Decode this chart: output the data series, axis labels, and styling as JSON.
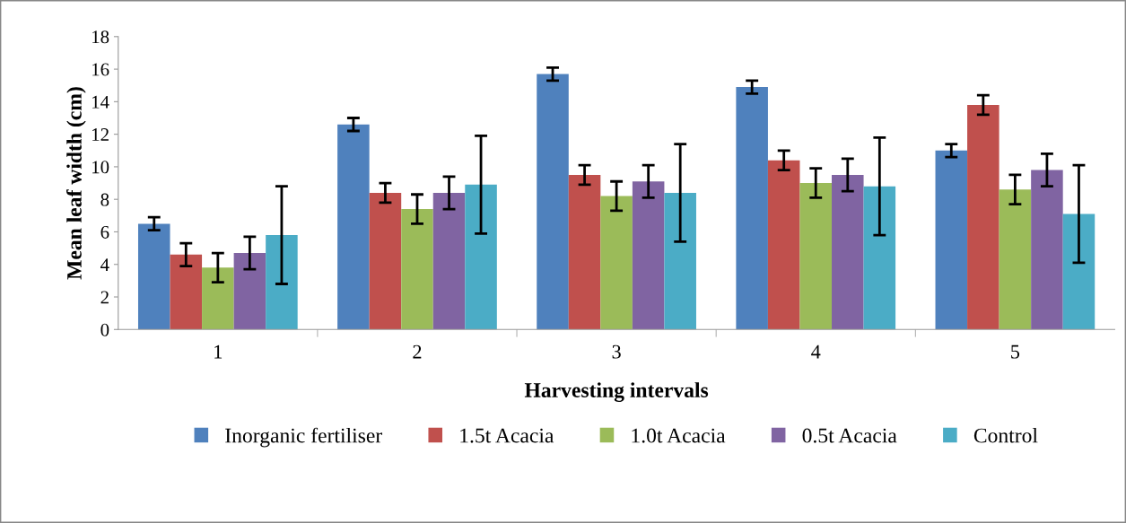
{
  "chart_data": {
    "type": "bar",
    "xlabel": "Harvesting intervals",
    "ylabel": "Mean leaf width (cm)",
    "categories": [
      "1",
      "2",
      "3",
      "4",
      "5"
    ],
    "series": [
      {
        "name": "Inorganic fertiliser",
        "color": "#4f81bd",
        "values": [
          6.5,
          12.6,
          15.7,
          14.9,
          11.0
        ],
        "errors": [
          0.4,
          0.4,
          0.4,
          0.4,
          0.4
        ]
      },
      {
        "name": "1.5t Acacia",
        "color": "#c0504d",
        "values": [
          4.6,
          8.4,
          9.5,
          10.4,
          13.8
        ],
        "errors": [
          0.7,
          0.6,
          0.6,
          0.6,
          0.6
        ]
      },
      {
        "name": "1.0t Acacia",
        "color": "#9bbb59",
        "values": [
          3.8,
          7.4,
          8.2,
          9.0,
          8.6
        ],
        "errors": [
          0.9,
          0.9,
          0.9,
          0.9,
          0.9
        ]
      },
      {
        "name": "0.5t Acacia",
        "color": "#8064a2",
        "values": [
          4.7,
          8.4,
          9.1,
          9.5,
          9.8
        ],
        "errors": [
          1.0,
          1.0,
          1.0,
          1.0,
          1.0
        ]
      },
      {
        "name": "Control",
        "color": "#4bacc6",
        "values": [
          5.8,
          8.9,
          8.4,
          8.8,
          7.1
        ],
        "errors": [
          3.0,
          3.0,
          3.0,
          3.0,
          3.0
        ]
      }
    ],
    "ylim": [
      0,
      18
    ],
    "yticks": [
      0,
      2,
      4,
      6,
      8,
      10,
      12,
      14,
      16,
      18
    ],
    "grid": false,
    "legend": "bottom"
  }
}
